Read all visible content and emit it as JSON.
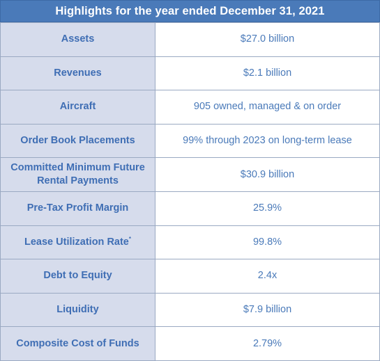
{
  "header": {
    "title": "Highlights for the year ended December 31, 2021"
  },
  "rows": [
    {
      "label": "Assets",
      "value": "$27.0 billion"
    },
    {
      "label": "Revenues",
      "value": "$2.1 billion"
    },
    {
      "label": "Aircraft",
      "value": "905 owned, managed & on order"
    },
    {
      "label": "Order Book Placements",
      "value": "99% through 2023 on long-term lease"
    },
    {
      "label": "Committed Minimum Future Rental Payments",
      "value": "$30.9 billion"
    },
    {
      "label": "Pre-Tax Profit Margin",
      "value": "25.9%"
    },
    {
      "label": "Lease Utilization Rate",
      "label_mark": "*",
      "value": "99.8%"
    },
    {
      "label": "Debt to Equity",
      "value": "2.4x"
    },
    {
      "label": "Liquidity",
      "value": "$7.9 billion"
    },
    {
      "label": "Composite Cost of Funds",
      "value": "2.79%"
    }
  ],
  "colors": {
    "header_bg": "#4a7ab9",
    "label_bg": "#d6dcec",
    "label_text": "#3f6eb4",
    "value_text": "#4a7ab9",
    "border": "#9aa9c2"
  }
}
